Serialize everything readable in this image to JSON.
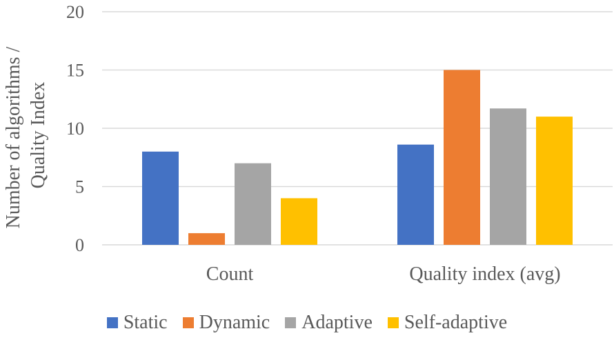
{
  "chart_data": {
    "type": "bar",
    "ylabel_lines": [
      "Number of algorithms /",
      "Quality Index"
    ],
    "xlabel": "",
    "categories": [
      "Count",
      "Quality index (avg)"
    ],
    "ylim": [
      0,
      20
    ],
    "yticks": [
      0,
      5,
      10,
      15,
      20
    ],
    "grid": true,
    "legend_position": "bottom",
    "series": [
      {
        "name": "Static",
        "color": "#4472C4",
        "values": [
          8,
          8.6
        ]
      },
      {
        "name": "Dynamic",
        "color": "#ED7D31",
        "values": [
          1,
          15
        ]
      },
      {
        "name": "Adaptive",
        "color": "#A5A5A5",
        "values": [
          7,
          11.7
        ]
      },
      {
        "name": "Self-adaptive",
        "color": "#FFC000",
        "values": [
          4,
          11
        ]
      }
    ]
  }
}
